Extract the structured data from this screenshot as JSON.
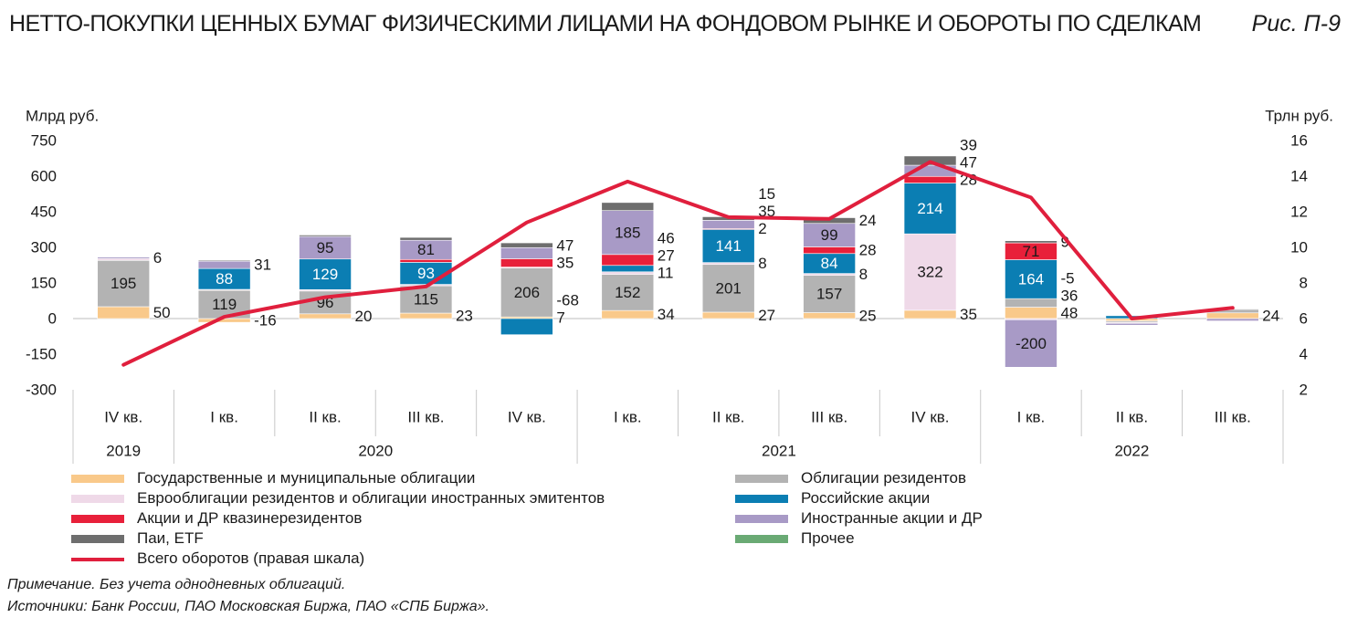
{
  "title": "НЕТТО-ПОКУПКИ ЦЕННЫХ БУМАГ ФИЗИЧЕСКИМИ ЛИЦАМИ НА ФОНДОВОМ РЫНКЕ И ОБОРОТЫ ПО СДЕЛКАМ",
  "figure_label": "Рис. П-9",
  "note": "Примечание. Без учета однодневных облигаций.",
  "source": "Источники: Банк России, ПАО Московская Биржа, ПАО «СПБ Биржа».",
  "chart_data": {
    "type": "bar",
    "stacked": true,
    "left_axis_label": "Млрд руб.",
    "right_axis_label": "Трлн руб.",
    "ylim": [
      -300,
      750
    ],
    "y_ticks": [
      "750",
      "600",
      "450",
      "300",
      "150",
      "0",
      "-150",
      "-300"
    ],
    "y2lim": [
      2,
      16
    ],
    "y2_ticks": [
      "16",
      "14",
      "12",
      "10",
      "8",
      "6",
      "4",
      "2"
    ],
    "categories": [
      "IV кв.",
      "I кв.",
      "II кв.",
      "III кв.",
      "IV кв.",
      "I кв.",
      "II кв.",
      "III кв.",
      "IV кв.",
      "I кв.",
      "II кв.",
      "III кв."
    ],
    "years": [
      {
        "label": "2019",
        "start": 0,
        "end": 0
      },
      {
        "label": "2020",
        "start": 1,
        "end": 4
      },
      {
        "label": "2021",
        "start": 5,
        "end": 8
      },
      {
        "label": "2022",
        "start": 9,
        "end": 11
      }
    ],
    "series": [
      {
        "name": "Государственные и муниципальные облигации",
        "color": "#f9c98a",
        "values": [
          50,
          -16,
          20,
          23,
          7,
          34,
          27,
          25,
          35,
          48,
          -10,
          24
        ],
        "labels": [
          "50",
          "-16",
          "20",
          "23",
          "7",
          "34",
          "27",
          "25",
          "35",
          "48",
          "",
          "24"
        ]
      },
      {
        "name": "Облигации резидентов",
        "color": "#b3b3b3",
        "values": [
          195,
          119,
          96,
          115,
          206,
          152,
          201,
          157,
          0,
          36,
          -6,
          12
        ],
        "labels": [
          "195",
          "119",
          "96",
          "115",
          "206",
          "152",
          "201",
          "157",
          "",
          "36",
          "",
          ""
        ]
      },
      {
        "name": "Еврооблигации резидентов и облигации иностранных эмитентов",
        "color": "#efd9e8",
        "values": [
          8,
          4,
          6,
          6,
          4,
          11,
          8,
          8,
          322,
          -5,
          -4,
          0
        ],
        "labels": [
          "",
          "",
          "",
          "",
          "",
          "11",
          "8",
          "8",
          "322",
          "-5",
          "",
          ""
        ]
      },
      {
        "name": "Российские акции",
        "color": "#0b7eb3",
        "values": [
          0,
          88,
          129,
          93,
          -68,
          27,
          141,
          84,
          214,
          164,
          12,
          0
        ],
        "labels": [
          "",
          "88",
          "129",
          "93",
          "-68",
          "27",
          "141",
          "84",
          "214",
          "164",
          "",
          ""
        ]
      },
      {
        "name": "Акции и ДР квазинерезидентов",
        "color": "#e8203a",
        "values": [
          0,
          0,
          0,
          12,
          35,
          46,
          2,
          28,
          28,
          71,
          0,
          0
        ],
        "labels": [
          "",
          "",
          "",
          "",
          "35",
          "46",
          "2",
          "28",
          "28",
          "71",
          "",
          ""
        ]
      },
      {
        "name": "Иностранные акции и ДР",
        "color": "#a89ac6",
        "values": [
          6,
          31,
          95,
          81,
          47,
          185,
          35,
          99,
          47,
          -200,
          -8,
          -10
        ],
        "labels": [
          "6",
          "31",
          "95",
          "81",
          "47",
          "185",
          "35",
          "99",
          "47",
          "-200",
          "",
          ""
        ]
      },
      {
        "name": "Паи, ETF",
        "color": "#6e6e6e",
        "values": [
          0,
          4,
          6,
          12,
          20,
          34,
          15,
          24,
          39,
          9,
          0,
          4
        ],
        "labels": [
          "",
          "",
          "",
          "",
          "",
          "",
          "15",
          "24",
          "39",
          "9",
          "",
          ""
        ]
      },
      {
        "name": "Прочее",
        "color": "#6aaa74",
        "values": [
          0,
          0,
          0,
          0,
          0,
          0,
          0,
          0,
          0,
          0,
          0,
          0
        ],
        "labels": [
          "",
          "",
          "",
          "",
          "",
          "",
          "",
          "",
          "",
          "",
          "",
          ""
        ]
      }
    ],
    "line_series": {
      "name": "Всего оборотов (правая шкала)",
      "color": "#e01f3d",
      "axis": "right",
      "values": [
        3.4,
        6.1,
        7.2,
        7.8,
        11.4,
        13.7,
        11.7,
        11.6,
        14.8,
        12.8,
        6.0,
        6.6
      ]
    },
    "legend": {
      "placement": "bottom",
      "columns": 2
    },
    "grid": false
  }
}
